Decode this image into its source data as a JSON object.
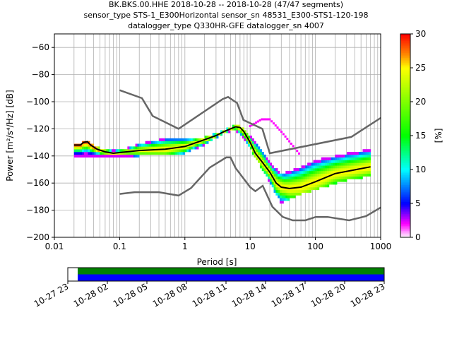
{
  "chart_data": {
    "type": "heatmap",
    "title_lines": [
      "BK.BKS.00.HHE   2018-10-28 -- 2018-10-28  (47/47 segments)",
      "sensor_type STS-1_E300Horizontal sensor_sn 48531_E300-STS1-120-198",
      "datalogger_type Q330HR-GFE datalogger_sn 4007"
    ],
    "xlabel": "Period [s]",
    "ylabel": "Power [m²/s⁴/Hz] [dB]",
    "xscale": "log",
    "xlim": [
      0.01,
      1000
    ],
    "ylim": [
      -200,
      -50
    ],
    "grid": true,
    "xticks": [
      "0.01",
      "0.1",
      "1",
      "10",
      "100",
      "1000"
    ],
    "yticks": [
      "−60",
      "−80",
      "−100",
      "−120",
      "−140",
      "−160",
      "−180",
      "−200"
    ],
    "colorbar": {
      "label": "[%]",
      "range": [
        0,
        30
      ],
      "ticks": [
        "0",
        "5",
        "10",
        "15",
        "20",
        "25",
        "30"
      ],
      "colormap": "pqlx",
      "stops": [
        {
          "v": 0,
          "color": "#ffffff"
        },
        {
          "v": 2,
          "color": "#ff00ff"
        },
        {
          "v": 5,
          "color": "#0000ff"
        },
        {
          "v": 10,
          "color": "#00ffff"
        },
        {
          "v": 15,
          "color": "#00ff00"
        },
        {
          "v": 25,
          "color": "#ffff00"
        },
        {
          "v": 27,
          "color": "#ff8800"
        },
        {
          "v": 30,
          "color": "#ff0000"
        }
      ]
    },
    "series": [
      {
        "type": "noise-model-high",
        "color": "#666666",
        "points": [
          [
            0.1,
            -91.5
          ],
          [
            0.22,
            -97.4
          ],
          [
            0.32,
            -110.5
          ],
          [
            0.8,
            -120
          ],
          [
            3.8,
            -98
          ],
          [
            4.6,
            -96.5
          ],
          [
            6.3,
            -101
          ],
          [
            7.9,
            -113.5
          ],
          [
            15.4,
            -120
          ],
          [
            20,
            -138
          ],
          [
            354.8,
            -126
          ],
          [
            1000,
            -112
          ]
        ]
      },
      {
        "type": "noise-model-low",
        "color": "#666666",
        "points": [
          [
            0.1,
            -168
          ],
          [
            0.17,
            -166.7
          ],
          [
            0.4,
            -166.7
          ],
          [
            0.8,
            -169.2
          ],
          [
            1.24,
            -163.7
          ],
          [
            2.4,
            -148.6
          ],
          [
            4.3,
            -141.1
          ],
          [
            5,
            -141.1
          ],
          [
            6,
            -149
          ],
          [
            10,
            -163
          ],
          [
            12,
            -166
          ],
          [
            15.6,
            -162
          ],
          [
            21.9,
            -177.5
          ],
          [
            31.6,
            -185
          ],
          [
            45,
            -187.5
          ],
          [
            70,
            -187.5
          ],
          [
            101,
            -185
          ],
          [
            154,
            -185
          ],
          [
            328,
            -187.5
          ],
          [
            600,
            -184.4
          ],
          [
            1000,
            -178
          ]
        ]
      },
      {
        "type": "mode",
        "color": "#000000",
        "points": [
          [
            0.02,
            -132
          ],
          [
            0.025,
            -132
          ],
          [
            0.028,
            -130
          ],
          [
            0.032,
            -129.5
          ],
          [
            0.036,
            -132
          ],
          [
            0.045,
            -135
          ],
          [
            0.06,
            -137
          ],
          [
            0.08,
            -138
          ],
          [
            0.1,
            -137.5
          ],
          [
            0.2,
            -136
          ],
          [
            0.5,
            -135
          ],
          [
            1,
            -133
          ],
          [
            2,
            -128
          ],
          [
            3,
            -125
          ],
          [
            4,
            -122
          ],
          [
            5,
            -120
          ],
          [
            6,
            -118.5
          ],
          [
            7,
            -119
          ],
          [
            8,
            -122
          ],
          [
            10,
            -130
          ],
          [
            12,
            -138
          ],
          [
            15,
            -144
          ],
          [
            20,
            -152
          ],
          [
            25,
            -160
          ],
          [
            30,
            -163
          ],
          [
            40,
            -164
          ],
          [
            60,
            -163
          ],
          [
            100,
            -159
          ],
          [
            200,
            -153
          ],
          [
            700,
            -148
          ]
        ]
      },
      {
        "type": "hist-upper",
        "points": [
          [
            0.1,
            -136
          ],
          [
            0.2,
            -131
          ],
          [
            0.5,
            -127
          ],
          [
            1,
            -127
          ],
          [
            2,
            -126
          ],
          [
            4,
            -121
          ],
          [
            6,
            -117
          ],
          [
            8,
            -120
          ],
          [
            10,
            -125
          ],
          [
            15,
            -135
          ],
          [
            20,
            -145
          ],
          [
            30,
            -153
          ],
          [
            60,
            -148
          ],
          [
            100,
            -143
          ],
          [
            300,
            -138
          ],
          [
            700,
            -135
          ]
        ]
      },
      {
        "type": "hist-lower",
        "points": [
          [
            0.1,
            -140
          ],
          [
            0.2,
            -140
          ],
          [
            0.5,
            -139
          ],
          [
            1,
            -138
          ],
          [
            2,
            -132
          ],
          [
            4,
            -123
          ],
          [
            6,
            -121
          ],
          [
            8,
            -127
          ],
          [
            10,
            -135
          ],
          [
            15,
            -149
          ],
          [
            20,
            -160
          ],
          [
            30,
            -175
          ],
          [
            60,
            -168
          ],
          [
            100,
            -165
          ],
          [
            300,
            -158
          ],
          [
            700,
            -155
          ]
        ]
      },
      {
        "type": "outlier-arc",
        "points": [
          [
            10,
            -118
          ],
          [
            15,
            -113
          ],
          [
            20,
            -113
          ],
          [
            30,
            -122
          ],
          [
            50,
            -135
          ],
          [
            60,
            -140
          ]
        ]
      }
    ]
  },
  "timeline": {
    "tick_labels": [
      "10-27 23",
      "10-28 02",
      "10-28 05",
      "10-28 08",
      "10-28 11",
      "10-28 14",
      "10-28 17",
      "10-28 20",
      "10-28 23"
    ],
    "start_hour": 23,
    "end_hour": 47,
    "data_start_hour": 23.75,
    "data_end_hour": 47,
    "band_colors": [
      "#008000",
      "#0000ff"
    ]
  }
}
